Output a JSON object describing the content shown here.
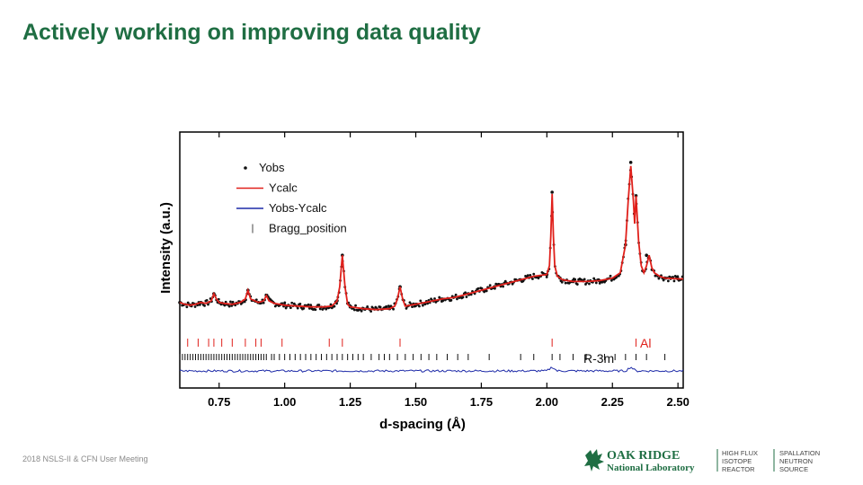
{
  "slide": {
    "title": "Actively working on improving data quality",
    "footer": "2018 NSLS-II & CFN User Meeting"
  },
  "logo": {
    "lab_name_line1": "OAK RIDGE",
    "lab_name_line2": "National Laboratory",
    "facility1": [
      "HIGH FLUX",
      "ISOTOPE",
      "REACTOR"
    ],
    "facility2": [
      "SPALLATION",
      "NEUTRON",
      "SOURCE"
    ],
    "brand_color": "#1f6e43"
  },
  "colors": {
    "yobs": "#111111",
    "ycalc": "#e0201b",
    "diff": "#1d2aa8",
    "bragg_al": "#e0201b",
    "bragg_r3m": "#111111",
    "title": "#1f6e43"
  },
  "chart_data": {
    "type": "line",
    "xlabel": "d-spacing (Å)",
    "ylabel": "Intensity (a.u.)",
    "xlim": [
      0.6,
      2.52
    ],
    "xticks": [
      0.75,
      1.0,
      1.25,
      1.5,
      1.75,
      2.0,
      2.25,
      2.5
    ],
    "xtick_labels": [
      "0.75",
      "1.00",
      "1.25",
      "1.50",
      "1.75",
      "2.00",
      "2.25",
      "2.50"
    ],
    "ylim": [
      0,
      100
    ],
    "yticks_shown": false,
    "legend": {
      "placement": "top-left",
      "entries": [
        "Yobs",
        "Ycalc",
        "Yobs-Ycalc",
        "Bragg_position"
      ]
    },
    "phase_labels": [
      "Al",
      "R-3m"
    ],
    "series": [
      {
        "name": "Ycalc",
        "x": [
          0.6,
          0.62,
          0.64,
          0.66,
          0.68,
          0.7,
          0.72,
          0.73,
          0.74,
          0.75,
          0.77,
          0.8,
          0.83,
          0.85,
          0.86,
          0.87,
          0.9,
          0.92,
          0.93,
          0.94,
          0.96,
          0.98,
          1.0,
          1.05,
          1.1,
          1.15,
          1.18,
          1.2,
          1.21,
          1.22,
          1.23,
          1.24,
          1.25,
          1.3,
          1.35,
          1.4,
          1.42,
          1.43,
          1.44,
          1.45,
          1.46,
          1.5,
          1.55,
          1.6,
          1.65,
          1.7,
          1.75,
          1.8,
          1.85,
          1.9,
          1.95,
          2.0,
          2.01,
          2.015,
          2.02,
          2.025,
          2.03,
          2.04,
          2.06,
          2.1,
          2.15,
          2.2,
          2.25,
          2.28,
          2.3,
          2.31,
          2.32,
          2.33,
          2.335,
          2.34,
          2.35,
          2.36,
          2.37,
          2.38,
          2.39,
          2.4,
          2.41,
          2.43,
          2.45,
          2.5,
          2.52
        ],
        "values": [
          17,
          16,
          15.5,
          16,
          17,
          16.5,
          18,
          22,
          19,
          17,
          16.5,
          16,
          17,
          19,
          24,
          19,
          17,
          18,
          21,
          18,
          16.5,
          16,
          15.5,
          15,
          14.5,
          14.5,
          15,
          18,
          26,
          44,
          26,
          16,
          14.5,
          13.5,
          13,
          13.5,
          15,
          19,
          26,
          19,
          15,
          16,
          17.5,
          19,
          20,
          22,
          24,
          26,
          28,
          30,
          32,
          33,
          38,
          55,
          79,
          55,
          38,
          32,
          30,
          29,
          29,
          29.5,
          31,
          34,
          50,
          75,
          95,
          75,
          62,
          78,
          52,
          38,
          34,
          38,
          44,
          37,
          34,
          32,
          31,
          30.5,
          30.5
        ]
      },
      {
        "name": "Yobs",
        "x": [
          0.6,
          0.64,
          0.68,
          0.73,
          0.75,
          0.8,
          0.86,
          0.9,
          0.93,
          1.0,
          1.1,
          1.2,
          1.22,
          1.25,
          1.3,
          1.4,
          1.44,
          1.5,
          1.6,
          1.7,
          1.8,
          1.9,
          2.0,
          2.02,
          2.05,
          2.1,
          2.2,
          2.3,
          2.32,
          2.34,
          2.38,
          2.45,
          2.5
        ],
        "values": [
          17,
          15.5,
          17,
          22,
          17,
          16,
          24,
          17,
          21,
          15.5,
          14.5,
          18,
          44,
          14.5,
          13.5,
          13.5,
          26,
          16,
          19,
          22,
          26,
          30,
          33,
          80,
          31,
          29,
          29.5,
          50,
          97,
          78,
          44,
          31,
          30.5
        ]
      },
      {
        "name": "Yobs-Ycalc",
        "x": [
          0.6,
          1.0,
          1.5,
          2.0,
          2.02,
          2.04,
          2.3,
          2.32,
          2.34,
          2.5
        ],
        "values": [
          0,
          0,
          0,
          0,
          1.5,
          0,
          0,
          1.5,
          0,
          0
        ]
      }
    ],
    "bragg_positions": {
      "Al": [
        0.63,
        0.67,
        0.71,
        0.73,
        0.76,
        0.8,
        0.85,
        0.89,
        0.91,
        0.99,
        1.17,
        1.22,
        1.44,
        2.02,
        2.34
      ],
      "R-3m": [
        0.6,
        0.61,
        0.62,
        0.63,
        0.64,
        0.65,
        0.66,
        0.67,
        0.68,
        0.69,
        0.7,
        0.71,
        0.72,
        0.73,
        0.74,
        0.75,
        0.76,
        0.77,
        0.78,
        0.79,
        0.8,
        0.81,
        0.82,
        0.83,
        0.84,
        0.85,
        0.86,
        0.87,
        0.88,
        0.89,
        0.9,
        0.91,
        0.92,
        0.93,
        0.95,
        0.96,
        0.98,
        1.0,
        1.02,
        1.04,
        1.06,
        1.08,
        1.1,
        1.12,
        1.14,
        1.16,
        1.18,
        1.2,
        1.22,
        1.24,
        1.26,
        1.28,
        1.3,
        1.33,
        1.36,
        1.38,
        1.4,
        1.43,
        1.46,
        1.49,
        1.52,
        1.55,
        1.58,
        1.62,
        1.66,
        1.7,
        1.78,
        1.9,
        1.95,
        2.02,
        2.05,
        2.1,
        2.15,
        2.22,
        2.26,
        2.3,
        2.34,
        2.38,
        2.45
      ]
    }
  }
}
